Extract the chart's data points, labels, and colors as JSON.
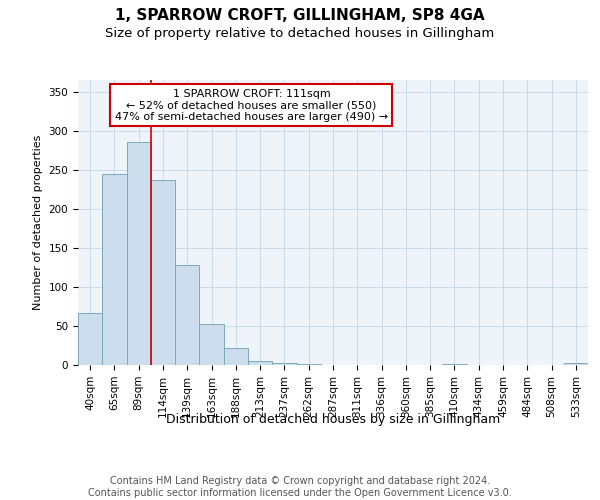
{
  "title1": "1, SPARROW CROFT, GILLINGHAM, SP8 4GA",
  "title2": "Size of property relative to detached houses in Gillingham",
  "xlabel": "Distribution of detached houses by size in Gillingham",
  "ylabel": "Number of detached properties",
  "categories": [
    "40sqm",
    "65sqm",
    "89sqm",
    "114sqm",
    "139sqm",
    "163sqm",
    "188sqm",
    "213sqm",
    "237sqm",
    "262sqm",
    "287sqm",
    "311sqm",
    "336sqm",
    "360sqm",
    "385sqm",
    "410sqm",
    "434sqm",
    "459sqm",
    "484sqm",
    "508sqm",
    "533sqm"
  ],
  "values": [
    67,
    245,
    285,
    237,
    128,
    52,
    22,
    5,
    2,
    1,
    0,
    0,
    0,
    0,
    0,
    1,
    0,
    0,
    0,
    0,
    2
  ],
  "bar_color": "#ccdded",
  "bar_edge_color": "#7aaabb",
  "red_line_x": 2.5,
  "annotation_text": "1 SPARROW CROFT: 111sqm\n← 52% of detached houses are smaller (550)\n47% of semi-detached houses are larger (490) →",
  "annotation_box_color": "white",
  "annotation_box_edge_color": "#cc0000",
  "red_line_color": "#cc0000",
  "footer_text": "Contains HM Land Registry data © Crown copyright and database right 2024.\nContains public sector information licensed under the Open Government Licence v3.0.",
  "ylim": [
    0,
    365
  ],
  "yticks": [
    0,
    50,
    100,
    150,
    200,
    250,
    300,
    350
  ],
  "title1_fontsize": 11,
  "title2_fontsize": 9.5,
  "xlabel_fontsize": 9,
  "ylabel_fontsize": 8,
  "tick_fontsize": 7.5,
  "annot_fontsize": 8,
  "footer_fontsize": 7,
  "background_color": "#ffffff",
  "plot_bg_color": "#eef4fa",
  "grid_color": "#c8dae8"
}
